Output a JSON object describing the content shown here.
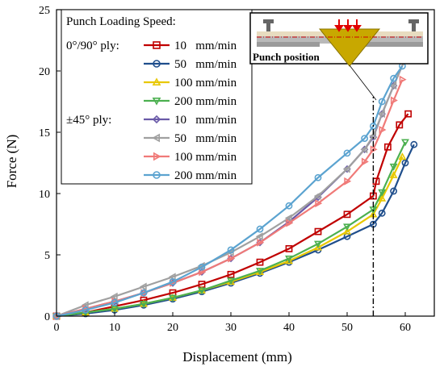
{
  "chart_data": {
    "type": "line",
    "xlabel": "Displacement (mm)",
    "ylabel": "Force (N)",
    "xlim": [
      0,
      65
    ],
    "ylim": [
      0,
      25
    ],
    "xticks": [
      0,
      10,
      20,
      30,
      40,
      50,
      60
    ],
    "yticks": [
      0,
      5,
      10,
      15,
      20,
      25
    ],
    "grid": false,
    "legend": {
      "placement": "top-left",
      "title": "Punch Loading Speed:",
      "group_labels": [
        "0°/90° ply:",
        "±45°  ply:"
      ]
    },
    "vline": {
      "x": 54.5,
      "style": "dash-dot"
    },
    "inset": {
      "label": "Punch position",
      "position": "top-right"
    },
    "series": [
      {
        "name": "10   mm/min",
        "group": "0°/90° ply:",
        "color": "#c00000",
        "marker": "square",
        "x": [
          0,
          5,
          10,
          15,
          20,
          25,
          30,
          35,
          40,
          45,
          50,
          54.5,
          55,
          57,
          59,
          60.5
        ],
        "y": [
          0,
          0.3,
          0.8,
          1.3,
          1.9,
          2.6,
          3.4,
          4.4,
          5.5,
          6.9,
          8.3,
          9.8,
          11,
          13.8,
          15.6,
          16.5
        ]
      },
      {
        "name": "50   mm/min",
        "group": "0°/90° ply:",
        "color": "#1f4e8c",
        "marker": "circle",
        "x": [
          0,
          5,
          10,
          15,
          20,
          25,
          30,
          35,
          40,
          45,
          50,
          54.5,
          56,
          58,
          60,
          61.5
        ],
        "y": [
          0,
          0.2,
          0.5,
          0.9,
          1.4,
          2.0,
          2.7,
          3.5,
          4.4,
          5.4,
          6.5,
          7.5,
          8.4,
          10.2,
          12.5,
          14
        ]
      },
      {
        "name": "100 mm/min",
        "group": "0°/90° ply:",
        "color": "#e8c800",
        "marker": "triangle-up",
        "x": [
          0,
          5,
          10,
          15,
          20,
          25,
          30,
          35,
          40,
          45,
          50,
          54.5,
          56,
          58,
          59.5
        ],
        "y": [
          0,
          0.3,
          0.6,
          1.0,
          1.5,
          2.1,
          2.8,
          3.6,
          4.5,
          5.6,
          6.9,
          8.3,
          9.6,
          11.5,
          13
        ]
      },
      {
        "name": "200 mm/min",
        "group": "0°/90° ply:",
        "color": "#4cb050",
        "marker": "triangle-down",
        "x": [
          0,
          5,
          10,
          15,
          20,
          25,
          30,
          35,
          40,
          45,
          50,
          54.5,
          56,
          58,
          60
        ],
        "y": [
          0,
          0.3,
          0.6,
          1.0,
          1.5,
          2.1,
          2.9,
          3.7,
          4.7,
          5.9,
          7.3,
          8.7,
          10.1,
          12.2,
          14.2
        ]
      },
      {
        "name": "10   mm/min",
        "group": "±45°  ply:",
        "color": "#6a5aa8",
        "marker": "diamond",
        "x": [
          0,
          5,
          10,
          15,
          20,
          25,
          30,
          35,
          40,
          45,
          50,
          53,
          54.5,
          56,
          58,
          60
        ],
        "y": [
          0,
          0.6,
          1.2,
          1.9,
          2.7,
          3.6,
          4.7,
          6.0,
          7.7,
          9.7,
          12.0,
          13.6,
          14.6,
          16.5,
          18.8,
          21
        ]
      },
      {
        "name": "50   mm/min",
        "group": "±45°  ply:",
        "color": "#a0a0a0",
        "marker": "triangle-left",
        "x": [
          0,
          5,
          10,
          15,
          20,
          25,
          30,
          35,
          40,
          45,
          50,
          53,
          54.5,
          56,
          58,
          60
        ],
        "y": [
          0,
          0.9,
          1.6,
          2.4,
          3.2,
          4.1,
          5.2,
          6.5,
          8.0,
          9.8,
          12.0,
          13.6,
          14.7,
          16.5,
          18.8,
          21
        ]
      },
      {
        "name": "100 mm/min",
        "group": "±45°  ply:",
        "color": "#f07a78",
        "marker": "triangle-right",
        "x": [
          0,
          5,
          10,
          15,
          20,
          25,
          30,
          35,
          40,
          45,
          50,
          53,
          54.5,
          56,
          58,
          59.5
        ],
        "y": [
          0,
          0.6,
          1.2,
          1.9,
          2.7,
          3.6,
          4.7,
          6.0,
          7.6,
          9.2,
          11.0,
          12.6,
          13.6,
          15.2,
          17.6,
          19.3
        ]
      },
      {
        "name": "200 mm/min",
        "group": "±45°  ply:",
        "color": "#5ba3d0",
        "marker": "circle",
        "x": [
          0,
          5,
          10,
          15,
          20,
          25,
          30,
          35,
          40,
          45,
          50,
          53,
          54.5,
          56,
          58,
          59.5
        ],
        "y": [
          0,
          0.5,
          1.1,
          1.9,
          2.8,
          4.0,
          5.4,
          7.1,
          9.0,
          11.3,
          13.3,
          14.5,
          15.5,
          17.5,
          19.4,
          20.4
        ]
      }
    ]
  }
}
